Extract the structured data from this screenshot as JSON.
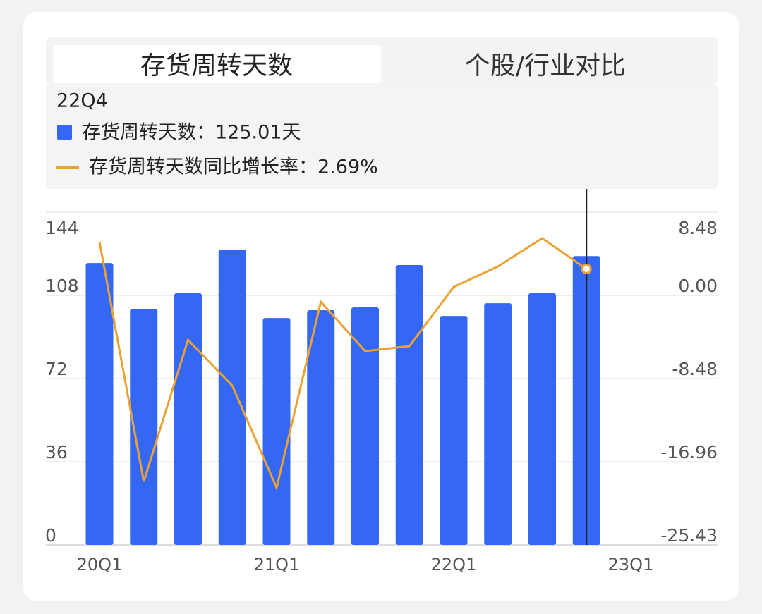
{
  "tabs": [
    "存货周转天数",
    "个股/行业对比"
  ],
  "chart_data": {
    "type": "bar-line",
    "categories": [
      "20Q1",
      null,
      null,
      null,
      "21Q1",
      null,
      null,
      null,
      "22Q1",
      null,
      null,
      null,
      "23Q1"
    ],
    "series": [
      {
        "name": "存货周转天数",
        "type": "bar",
        "color": "#3467f4",
        "values": [
          122.0,
          102.2,
          108.9,
          127.8,
          98.2,
          101.6,
          102.8,
          121.1,
          99.1,
          104.6,
          108.9,
          125.01,
          null
        ]
      },
      {
        "name": "存货周转天数同比增长率",
        "type": "line",
        "axis": "y2",
        "color": "#eba232",
        "values": [
          5.46,
          -18.97,
          -4.53,
          -9.2,
          -19.6,
          -0.65,
          -5.68,
          -5.17,
          0.86,
          2.95,
          5.82,
          2.69,
          null
        ]
      }
    ],
    "ylim": [
      0,
      144
    ],
    "yticks": [
      0,
      36,
      72,
      108,
      144
    ],
    "y2lim": [
      -25.43,
      8.48
    ],
    "y2ticks": [
      -25.43,
      -16.96,
      -8.48,
      {
        "value": 0,
        "label": "0.00"
      },
      8.48
    ],
    "grid": true,
    "tooltip": {
      "title": "22Q4",
      "items": [
        "存货周转天数：125.01天",
        "存货周转天数同比增长率：2.69%"
      ]
    }
  }
}
